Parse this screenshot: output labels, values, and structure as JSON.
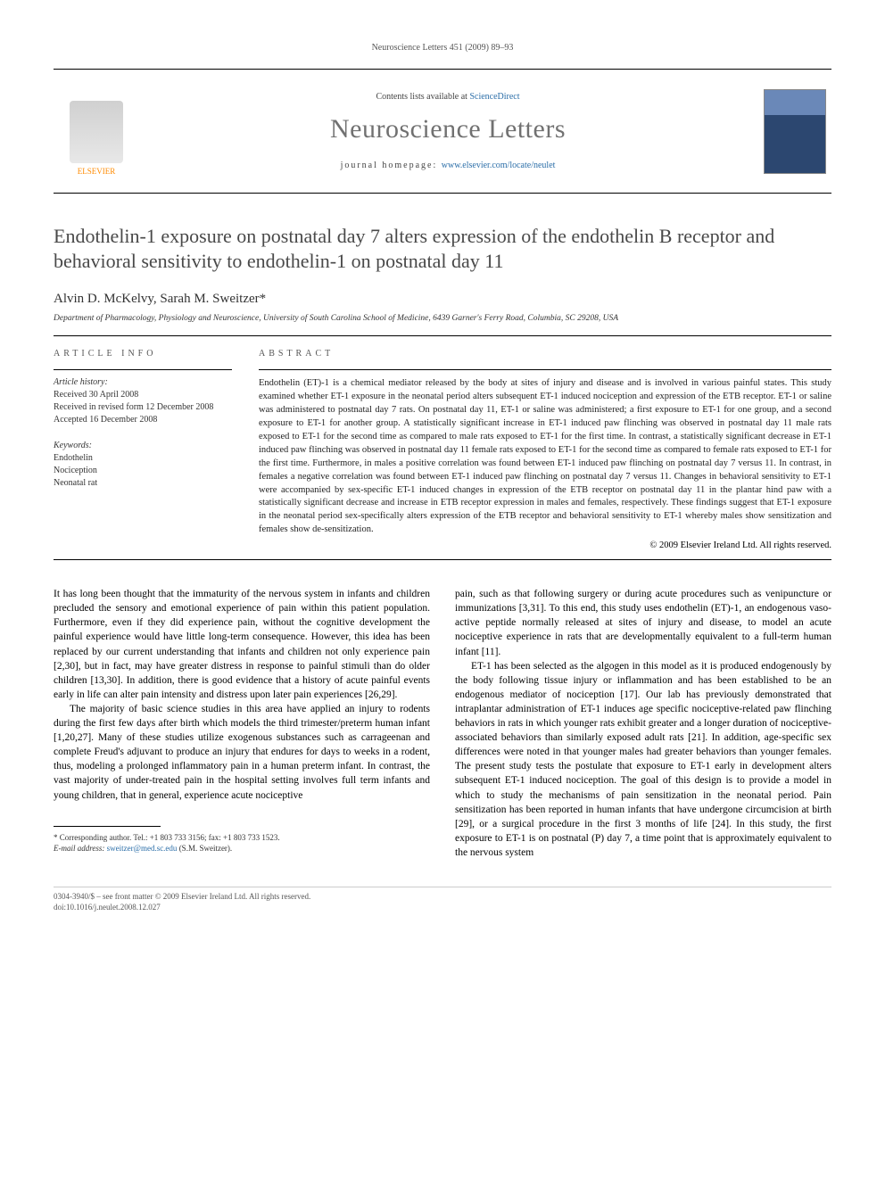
{
  "running_header": "Neuroscience Letters 451 (2009) 89–93",
  "masthead": {
    "contents_prefix": "Contents lists available at ",
    "contents_link": "ScienceDirect",
    "journal": "Neuroscience Letters",
    "homepage_prefix": "journal homepage: ",
    "homepage_url": "www.elsevier.com/locate/neulet",
    "publisher": "ELSEVIER"
  },
  "title": "Endothelin-1 exposure on postnatal day 7 alters expression of the endothelin B receptor and behavioral sensitivity to endothelin-1 on postnatal day 11",
  "authors": "Alvin D. McKelvy, Sarah M. Sweitzer*",
  "affiliation": "Department of Pharmacology, Physiology and Neuroscience, University of South Carolina School of Medicine, 6439 Garner's Ferry Road, Columbia, SC 29208, USA",
  "article_info": {
    "heading": "article info",
    "history_label": "Article history:",
    "history": [
      "Received 30 April 2008",
      "Received in revised form 12 December 2008",
      "Accepted 16 December 2008"
    ],
    "keywords_label": "Keywords:",
    "keywords": [
      "Endothelin",
      "Nociception",
      "Neonatal rat"
    ]
  },
  "abstract": {
    "heading": "abstract",
    "text": "Endothelin (ET)-1 is a chemical mediator released by the body at sites of injury and disease and is involved in various painful states. This study examined whether ET-1 exposure in the neonatal period alters subsequent ET-1 induced nociception and expression of the ETB receptor. ET-1 or saline was administered to postnatal day 7 rats. On postnatal day 11, ET-1 or saline was administered; a first exposure to ET-1 for one group, and a second exposure to ET-1 for another group. A statistically significant increase in ET-1 induced paw flinching was observed in postnatal day 11 male rats exposed to ET-1 for the second time as compared to male rats exposed to ET-1 for the first time. In contrast, a statistically significant decrease in ET-1 induced paw flinching was observed in postnatal day 11 female rats exposed to ET-1 for the second time as compared to female rats exposed to ET-1 for the first time. Furthermore, in males a positive correlation was found between ET-1 induced paw flinching on postnatal day 7 versus 11. In contrast, in females a negative correlation was found between ET-1 induced paw flinching on postnatal day 7 versus 11. Changes in behavioral sensitivity to ET-1 were accompanied by sex-specific ET-1 induced changes in expression of the ETB receptor on postnatal day 11 in the plantar hind paw with a statistically significant decrease and increase in ETB receptor expression in males and females, respectively. These findings suggest that ET-1 exposure in the neonatal period sex-specifically alters expression of the ETB receptor and behavioral sensitivity to ET-1 whereby males show sensitization and females show de-sensitization.",
    "copyright": "© 2009 Elsevier Ireland Ltd. All rights reserved."
  },
  "body": {
    "col1": {
      "p1": "It has long been thought that the immaturity of the nervous system in infants and children precluded the sensory and emotional experience of pain within this patient population. Furthermore, even if they did experience pain, without the cognitive development the painful experience would have little long-term consequence. However, this idea has been replaced by our current understanding that infants and children not only experience pain [2,30], but in fact, may have greater distress in response to painful stimuli than do older children [13,30]. In addition, there is good evidence that a history of acute painful events early in life can alter pain intensity and distress upon later pain experiences [26,29].",
      "p2": "The majority of basic science studies in this area have applied an injury to rodents during the first few days after birth which models the third trimester/preterm human infant [1,20,27]. Many of these studies utilize exogenous substances such as carrageenan and complete Freud's adjuvant to produce an injury that endures for days to weeks in a rodent, thus, modeling a prolonged inflammatory pain in a human preterm infant. In contrast, the vast majority of under-treated pain in the hospital setting involves full term infants and young children, that in general, experience acute nociceptive"
    },
    "col2": {
      "p1": "pain, such as that following surgery or during acute procedures such as venipuncture or immunizations [3,31]. To this end, this study uses endothelin (ET)-1, an endogenous vaso-active peptide normally released at sites of injury and disease, to model an acute nociceptive experience in rats that are developmentally equivalent to a full-term human infant [11].",
      "p2": "ET-1 has been selected as the algogen in this model as it is produced endogenously by the body following tissue injury or inflammation and has been established to be an endogenous mediator of nociception [17]. Our lab has previously demonstrated that intraplantar administration of ET-1 induces age specific nociceptive-related paw flinching behaviors in rats in which younger rats exhibit greater and a longer duration of nociceptive-associated behaviors than similarly exposed adult rats [21]. In addition, age-specific sex differences were noted in that younger males had greater behaviors than younger females. The present study tests the postulate that exposure to ET-1 early in development alters subsequent ET-1 induced nociception. The goal of this design is to provide a model in which to study the mechanisms of pain sensitization in the neonatal period. Pain sensitization has been reported in human infants that have undergone circumcision at birth [29], or a surgical procedure in the first 3 months of life [24]. In this study, the first exposure to ET-1 is on postnatal (P) day 7, a time point that is approximately equivalent to the nervous system"
    }
  },
  "footnote": {
    "corr": "* Corresponding author. Tel.: +1 803 733 3156; fax: +1 803 733 1523.",
    "email_label": "E-mail address: ",
    "email": "sweitzer@med.sc.edu",
    "email_suffix": " (S.M. Sweitzer)."
  },
  "bottom": {
    "line1": "0304-3940/$ – see front matter © 2009 Elsevier Ireland Ltd. All rights reserved.",
    "line2": "doi:10.1016/j.neulet.2008.12.027"
  },
  "colors": {
    "link": "#2b6ea8",
    "journal_grey": "#717171",
    "elsevier_orange": "#ff8a00"
  }
}
